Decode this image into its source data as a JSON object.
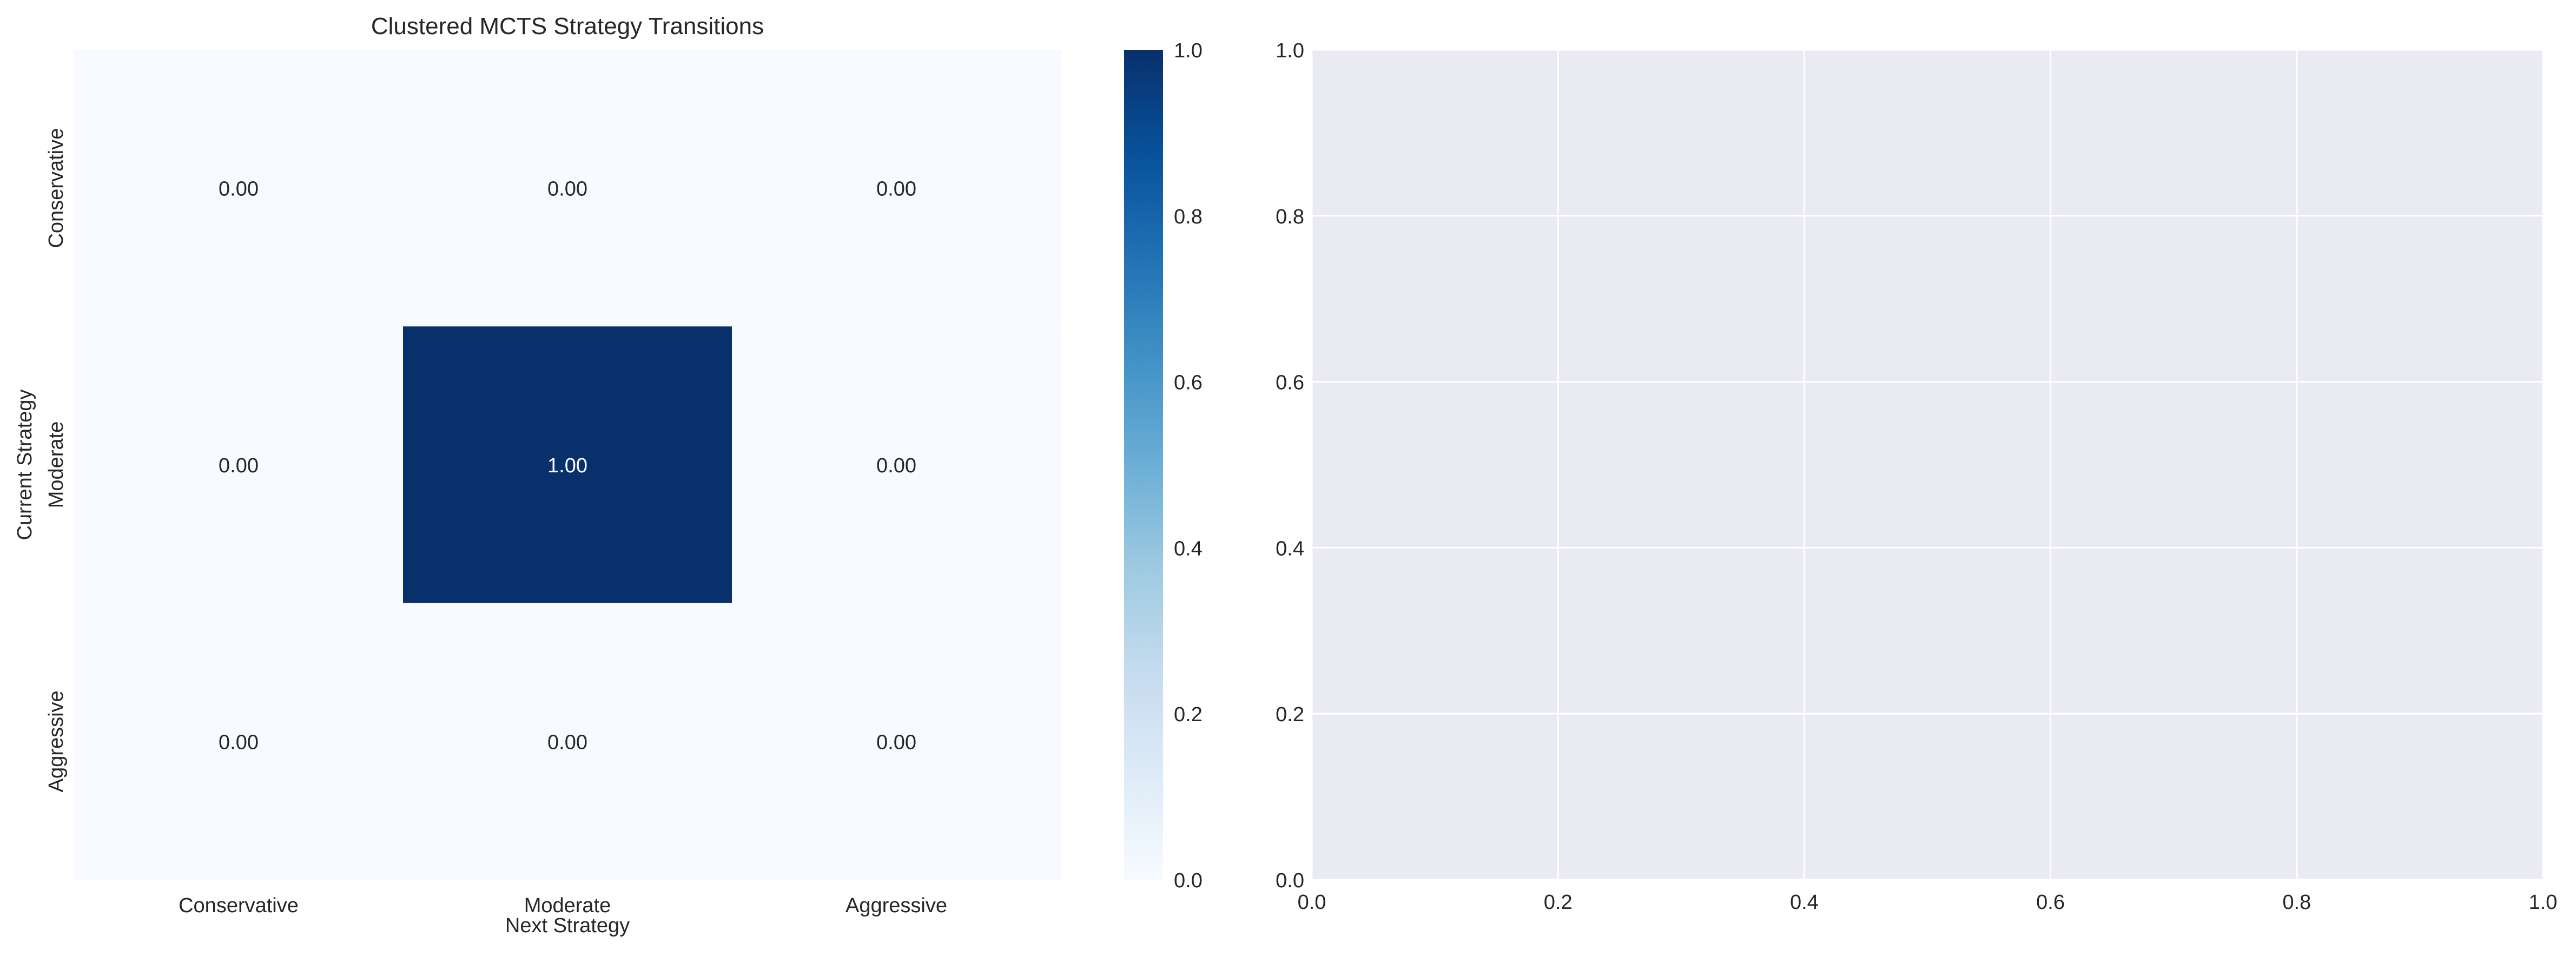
{
  "figure": {
    "colors": {
      "background": "#ffffff",
      "text": "#262626",
      "axes_face": "#eaeaf2",
      "grid": "#ffffff",
      "cmap_low": "#f7fbff",
      "cmap_high": "#08306b"
    }
  },
  "chart_data": [
    {
      "type": "heatmap",
      "title": "Clustered MCTS Strategy Transitions",
      "xlabel": "Next Strategy",
      "ylabel": "Current Strategy",
      "x_categories": [
        "Conservative",
        "Moderate",
        "Aggressive"
      ],
      "y_categories": [
        "Conservative",
        "Moderate",
        "Aggressive"
      ],
      "values": [
        [
          0.0,
          0.0,
          0.0
        ],
        [
          0.0,
          1.0,
          0.0
        ],
        [
          0.0,
          0.0,
          0.0
        ]
      ],
      "cell_labels": [
        [
          "0.00",
          "0.00",
          "0.00"
        ],
        [
          "0.00",
          "1.00",
          "0.00"
        ],
        [
          "0.00",
          "0.00",
          "0.00"
        ]
      ],
      "colormap": "Blues",
      "colorbar": {
        "range": [
          0,
          1
        ],
        "ticks": [
          0.0,
          0.2,
          0.4,
          0.6,
          0.8,
          1.0
        ],
        "tick_labels": [
          "0.0",
          "0.2",
          "0.4",
          "0.6",
          "0.8",
          "1.0"
        ]
      }
    },
    {
      "type": "line",
      "title": "",
      "xlabel": "",
      "ylabel": "",
      "series": [],
      "xlim": [
        0,
        1
      ],
      "ylim": [
        0,
        1
      ],
      "grid": true,
      "x_ticks": [
        0.0,
        0.2,
        0.4,
        0.6,
        0.8,
        1.0
      ],
      "x_tick_labels": [
        "0.0",
        "0.2",
        "0.4",
        "0.6",
        "0.8",
        "1.0"
      ],
      "y_ticks": [
        0.0,
        0.2,
        0.4,
        0.6,
        0.8,
        1.0
      ],
      "y_tick_labels": [
        "0.0",
        "0.2",
        "0.4",
        "0.6",
        "0.8",
        "1.0"
      ]
    }
  ]
}
